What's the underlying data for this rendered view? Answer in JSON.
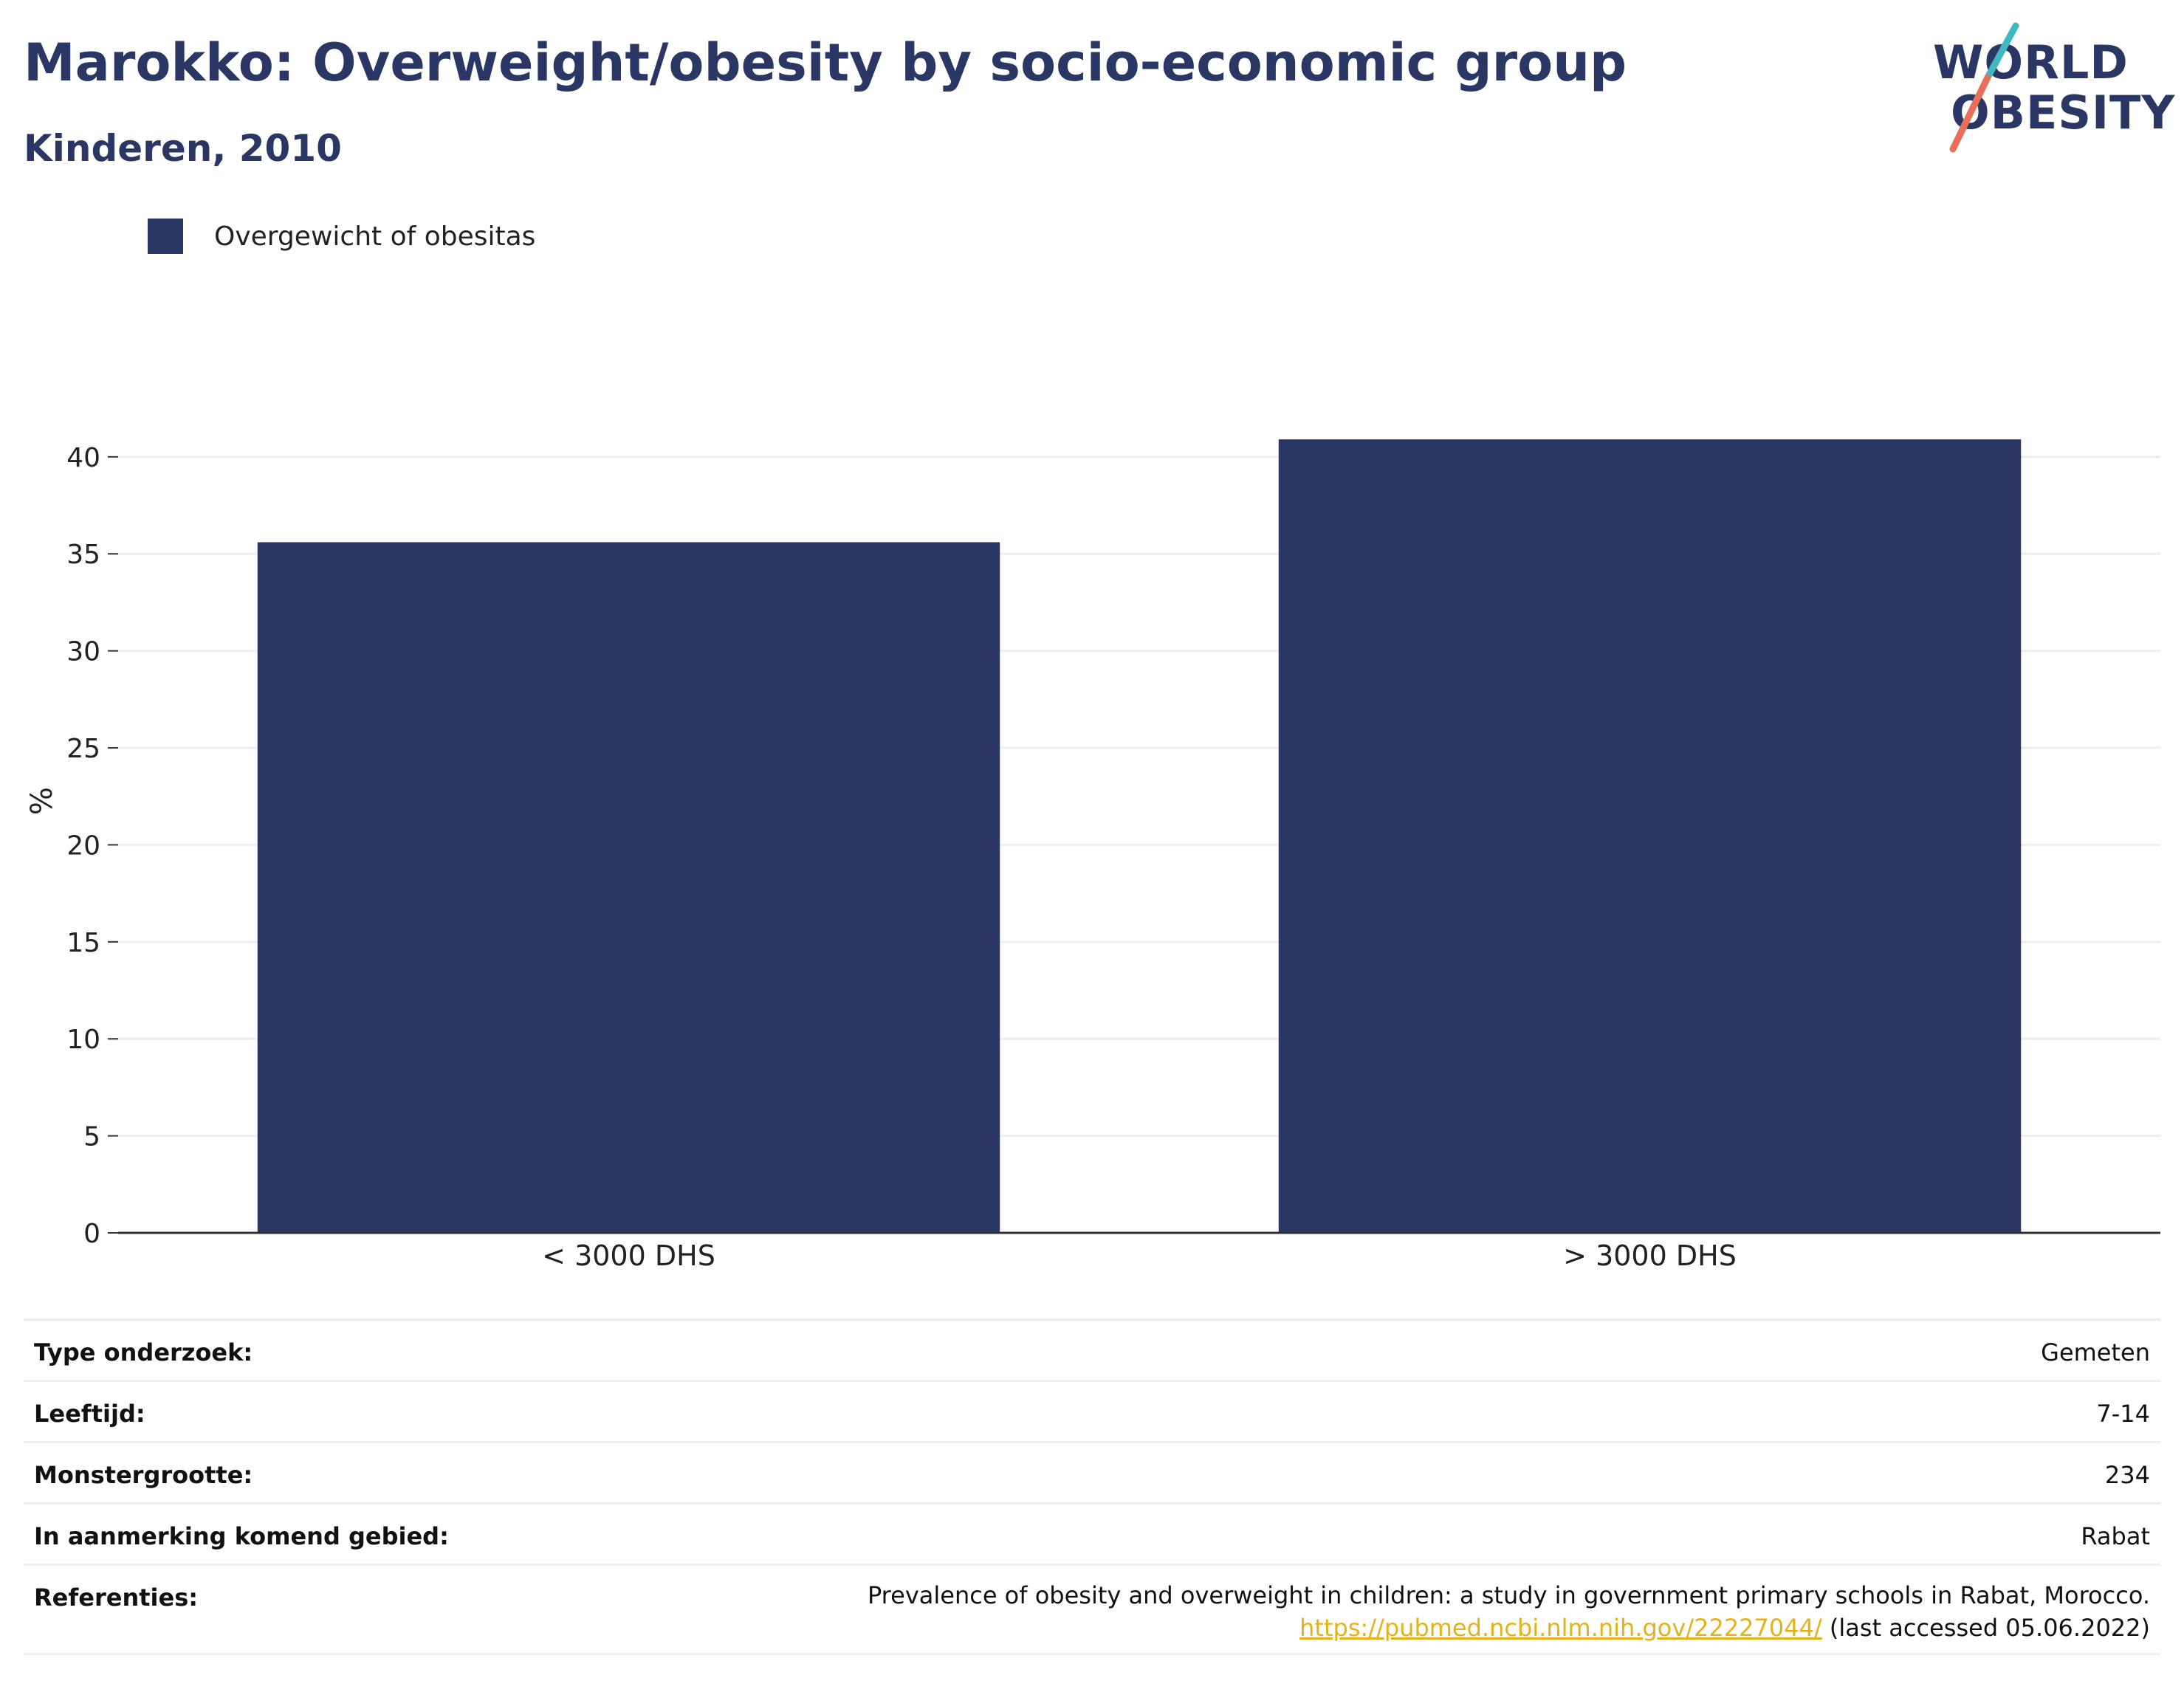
{
  "header": {
    "title": "Marokko: Overweight/obesity by socio-economic group",
    "subtitle": "Kinderen, 2010"
  },
  "logo": {
    "line1": "WORLD",
    "line2": "OBESITY",
    "colors": {
      "text": "#2a3663",
      "slash_top": "#3fb8c1",
      "slash_bottom": "#e8705a"
    }
  },
  "legend": {
    "label": "Overgewicht of obesitas",
    "color": "#2a3663"
  },
  "chart_data": {
    "type": "bar",
    "categories": [
      "< 3000 DHS",
      "> 3000 DHS"
    ],
    "series": [
      {
        "name": "Overgewicht of obesitas",
        "values": [
          35.6,
          40.9
        ],
        "color": "#2a3663"
      }
    ],
    "ylabel": "%",
    "xlabel": "",
    "ylim": [
      0,
      43
    ],
    "yticks": [
      0,
      5,
      10,
      15,
      20,
      25,
      30,
      35,
      40
    ],
    "grid": true,
    "legend_position": "top-left"
  },
  "info": {
    "rows": [
      {
        "label": "Type onderzoek:",
        "value": "Gemeten"
      },
      {
        "label": "Leeftijd:",
        "value": "7-14"
      },
      {
        "label": "Monstergrootte:",
        "value": "234"
      },
      {
        "label": "In aanmerking komend gebied:",
        "value": "Rabat"
      }
    ],
    "references": {
      "label": "Referenties:",
      "text": "Prevalence of obesity and overweight in children: a study in government primary schools in Rabat, Morocco.",
      "link": "https://pubmed.ncbi.nlm.nih.gov/22227044/",
      "accessed": " (last accessed 05.06.2022)"
    }
  }
}
